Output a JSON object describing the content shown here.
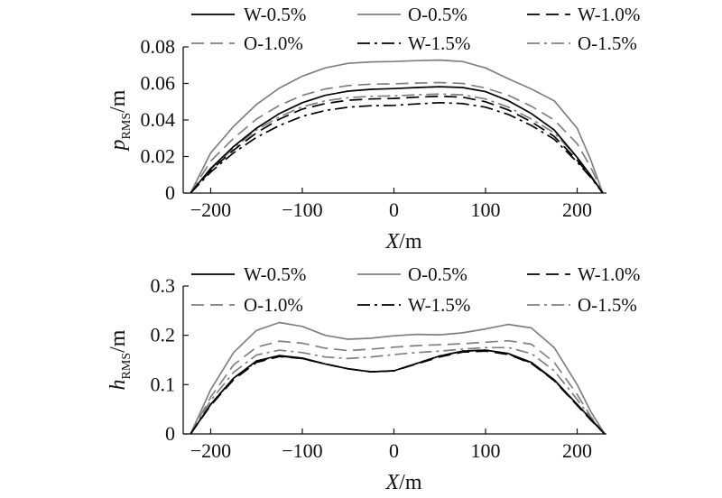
{
  "chart_data": [
    {
      "type": "line",
      "xlabel_var": "X",
      "xlabel_unit": "/m",
      "ylabel_var": "p",
      "ylabel_sub": "RMS",
      "ylabel_unit": "/m",
      "xlim": [
        -230,
        232
      ],
      "ylim": [
        0,
        0.08
      ],
      "xticks": [
        -200,
        -100,
        0,
        100,
        200
      ],
      "yticks": [
        0,
        0.02,
        0.04,
        0.06,
        0.08
      ],
      "xtick_labels": [
        "−200",
        "−100",
        "0",
        "100",
        "200"
      ],
      "ytick_labels": [
        "0",
        "0.02",
        "0.04",
        "0.06",
        "0.08"
      ],
      "legend_position": "top",
      "series": [
        {
          "name": "W-0.5%",
          "color": "#000000",
          "dash": "solid",
          "x": [
            -222,
            -200,
            -175,
            -150,
            -125,
            -100,
            -75,
            -50,
            -25,
            0,
            25,
            50,
            75,
            100,
            125,
            150,
            175,
            200,
            215,
            228
          ],
          "y": [
            0,
            0.0135,
            0.0255,
            0.0355,
            0.0435,
            0.0495,
            0.0535,
            0.0558,
            0.0568,
            0.0572,
            0.0578,
            0.0582,
            0.0578,
            0.0555,
            0.0505,
            0.0435,
            0.0345,
            0.0195,
            0.0095,
            0
          ]
        },
        {
          "name": "O-0.5%",
          "color": "#808080",
          "dash": "solid",
          "x": [
            -222,
            -200,
            -175,
            -150,
            -125,
            -100,
            -75,
            -50,
            -25,
            0,
            25,
            50,
            75,
            100,
            125,
            150,
            175,
            200,
            215,
            228
          ],
          "y": [
            0,
            0.022,
            0.0365,
            0.0485,
            0.0575,
            0.064,
            0.0685,
            0.071,
            0.0718,
            0.072,
            0.0725,
            0.0728,
            0.072,
            0.0685,
            0.0625,
            0.057,
            0.0505,
            0.0355,
            0.018,
            0
          ]
        },
        {
          "name": "W-1.0%",
          "color": "#000000",
          "dash": "long",
          "x": [
            -222,
            -200,
            -175,
            -150,
            -125,
            -100,
            -75,
            -50,
            -25,
            0,
            25,
            50,
            75,
            100,
            125,
            150,
            175,
            200,
            215,
            228
          ],
          "y": [
            0,
            0.0125,
            0.0235,
            0.033,
            0.0405,
            0.046,
            0.049,
            0.0508,
            0.0515,
            0.0518,
            0.0525,
            0.053,
            0.0525,
            0.05,
            0.0455,
            0.039,
            0.031,
            0.018,
            0.009,
            0
          ]
        },
        {
          "name": "O-1.0%",
          "color": "#808080",
          "dash": "long",
          "x": [
            -222,
            -200,
            -175,
            -150,
            -125,
            -100,
            -75,
            -50,
            -25,
            0,
            25,
            50,
            75,
            100,
            125,
            150,
            175,
            200,
            215,
            228
          ],
          "y": [
            0,
            0.0175,
            0.03,
            0.0405,
            0.048,
            0.0535,
            0.057,
            0.0588,
            0.0596,
            0.0598,
            0.0602,
            0.0605,
            0.06,
            0.0575,
            0.0535,
            0.0475,
            0.04,
            0.027,
            0.014,
            0
          ]
        },
        {
          "name": "W-1.5%",
          "color": "#000000",
          "dash": "dashdot",
          "x": [
            -222,
            -200,
            -175,
            -150,
            -125,
            -100,
            -75,
            -50,
            -25,
            0,
            25,
            50,
            75,
            100,
            125,
            150,
            175,
            200,
            215,
            228
          ],
          "y": [
            0,
            0.0115,
            0.022,
            0.0305,
            0.037,
            0.042,
            0.0452,
            0.047,
            0.0478,
            0.048,
            0.0488,
            0.0495,
            0.049,
            0.047,
            0.043,
            0.037,
            0.0295,
            0.017,
            0.0085,
            0
          ]
        },
        {
          "name": "O-1.5%",
          "color": "#808080",
          "dash": "dashdot",
          "x": [
            -222,
            -200,
            -175,
            -150,
            -125,
            -100,
            -75,
            -50,
            -25,
            0,
            25,
            50,
            75,
            100,
            125,
            150,
            175,
            200,
            215,
            228
          ],
          "y": [
            0,
            0.013,
            0.0245,
            0.0345,
            0.0418,
            0.0472,
            0.0505,
            0.0522,
            0.053,
            0.0532,
            0.0538,
            0.0542,
            0.0538,
            0.0515,
            0.047,
            0.0405,
            0.033,
            0.0195,
            0.0095,
            0
          ]
        }
      ]
    },
    {
      "type": "line",
      "xlabel_var": "X",
      "xlabel_unit": "/m",
      "ylabel_var": "h",
      "ylabel_sub": "RMS",
      "ylabel_unit": "/m",
      "xlim": [
        -230,
        232
      ],
      "ylim": [
        0,
        0.3
      ],
      "xticks": [
        -200,
        -100,
        0,
        100,
        200
      ],
      "yticks": [
        0,
        0.1,
        0.2,
        0.3
      ],
      "xtick_labels": [
        "−200",
        "−100",
        "0",
        "100",
        "200"
      ],
      "ytick_labels": [
        "0",
        "0.1",
        "0.2",
        "0.3"
      ],
      "legend_position": "top",
      "series": [
        {
          "name": "W-0.5%",
          "color": "#000000",
          "dash": "solid",
          "x": [
            -222,
            -200,
            -175,
            -150,
            -125,
            -100,
            -75,
            -50,
            -25,
            0,
            25,
            50,
            75,
            100,
            125,
            150,
            175,
            200,
            215,
            230
          ],
          "y": [
            0,
            0.06,
            0.113,
            0.148,
            0.159,
            0.154,
            0.142,
            0.132,
            0.126,
            0.128,
            0.143,
            0.158,
            0.168,
            0.17,
            0.163,
            0.145,
            0.11,
            0.06,
            0.03,
            0
          ]
        },
        {
          "name": "O-0.5%",
          "color": "#808080",
          "dash": "solid",
          "x": [
            -222,
            -200,
            -175,
            -150,
            -125,
            -100,
            -75,
            -50,
            -25,
            0,
            25,
            50,
            75,
            100,
            125,
            150,
            175,
            200,
            215,
            230
          ],
          "y": [
            0,
            0.09,
            0.165,
            0.21,
            0.226,
            0.218,
            0.2,
            0.192,
            0.194,
            0.199,
            0.202,
            0.201,
            0.205,
            0.213,
            0.222,
            0.215,
            0.175,
            0.1,
            0.045,
            0
          ]
        },
        {
          "name": "W-1.0%",
          "color": "#000000",
          "dash": "long",
          "x": [
            -222,
            -200,
            -175,
            -150,
            -125,
            -100,
            -75,
            -50,
            -25,
            0,
            25,
            50,
            75,
            100,
            125,
            150,
            175,
            200,
            215,
            230
          ],
          "y": [
            0,
            0.058,
            0.11,
            0.145,
            0.157,
            0.153,
            0.142,
            0.132,
            0.126,
            0.128,
            0.142,
            0.156,
            0.166,
            0.168,
            0.161,
            0.143,
            0.108,
            0.058,
            0.028,
            0
          ]
        },
        {
          "name": "O-1.0%",
          "color": "#808080",
          "dash": "long",
          "x": [
            -222,
            -200,
            -175,
            -150,
            -125,
            -100,
            -75,
            -50,
            -25,
            0,
            25,
            50,
            75,
            100,
            125,
            150,
            175,
            200,
            215,
            230
          ],
          "y": [
            0,
            0.075,
            0.14,
            0.176,
            0.188,
            0.184,
            0.174,
            0.169,
            0.172,
            0.176,
            0.179,
            0.181,
            0.183,
            0.186,
            0.189,
            0.182,
            0.145,
            0.08,
            0.035,
            0
          ]
        },
        {
          "name": "W-1.5%",
          "color": "#000000",
          "dash": "dashdot",
          "x": [
            -222,
            -200,
            -175,
            -150,
            -125,
            -100,
            -75,
            -50,
            -25,
            0,
            25,
            50,
            75,
            100,
            125,
            150,
            175,
            200,
            215,
            230
          ],
          "y": [
            0,
            0.06,
            0.113,
            0.147,
            0.158,
            0.153,
            0.142,
            0.132,
            0.126,
            0.128,
            0.143,
            0.158,
            0.168,
            0.17,
            0.162,
            0.144,
            0.109,
            0.059,
            0.029,
            0
          ]
        },
        {
          "name": "O-1.5%",
          "color": "#808080",
          "dash": "dashdot",
          "x": [
            -222,
            -200,
            -175,
            -150,
            -125,
            -100,
            -75,
            -50,
            -25,
            0,
            25,
            50,
            75,
            100,
            125,
            150,
            175,
            200,
            215,
            230
          ],
          "y": [
            0,
            0.068,
            0.125,
            0.16,
            0.17,
            0.165,
            0.156,
            0.153,
            0.156,
            0.161,
            0.165,
            0.168,
            0.172,
            0.175,
            0.175,
            0.163,
            0.128,
            0.07,
            0.032,
            0
          ]
        }
      ]
    }
  ]
}
